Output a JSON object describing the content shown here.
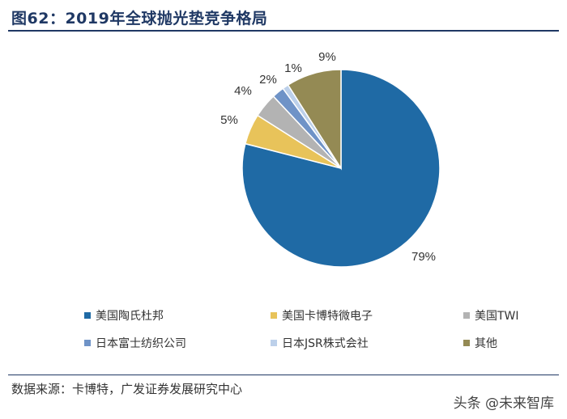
{
  "title": "图62：2019年全球抛光垫竞争格局",
  "source": "数据来源：卡博特，广发证券发展研究中心",
  "watermark": "头条 @未来智库",
  "chart_data": {
    "type": "pie",
    "start_angle_deg": 0,
    "direction": "clockwise",
    "slices": [
      {
        "name": "美国陶氏杜邦",
        "value": 79,
        "label": "79%",
        "color": "#1f6aa5"
      },
      {
        "name": "美国卡博特微电子",
        "value": 5,
        "label": "5%",
        "color": "#e8c35a"
      },
      {
        "name": "美国TWI",
        "value": 4,
        "label": "4%",
        "color": "#b3b3b3"
      },
      {
        "name": "日本富士纺织公司",
        "value": 2,
        "label": "2%",
        "color": "#6f93c7"
      },
      {
        "name": "日本JSR株式会社",
        "value": 1,
        "label": "1%",
        "color": "#bcd0ea"
      },
      {
        "name": "其他",
        "value": 9,
        "label": "9%",
        "color": "#948a54"
      }
    ]
  }
}
